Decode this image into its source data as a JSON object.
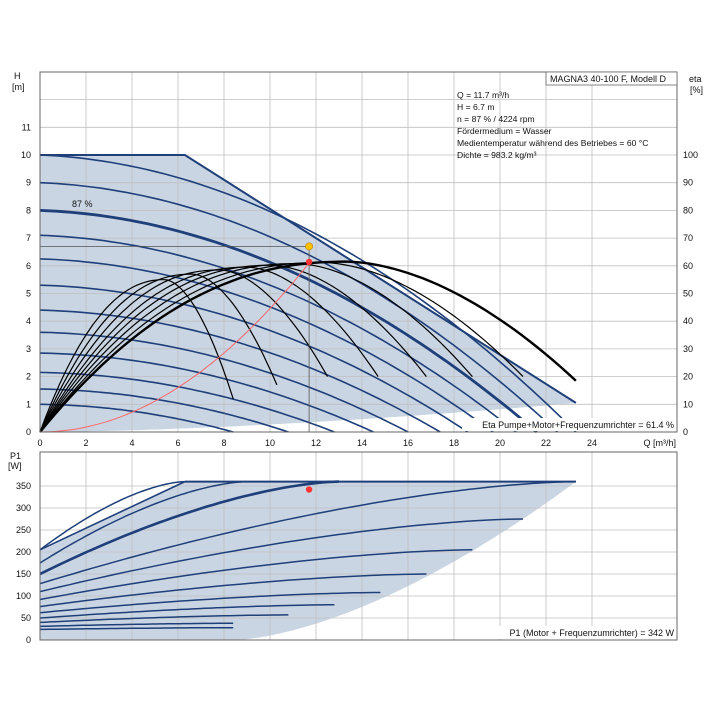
{
  "chart_data": [
    {
      "type": "line",
      "title": "MAGNA3 40-100 F, Modell D",
      "ylabel_left": [
        "H",
        "[m]"
      ],
      "ylabel_right": [
        "eta",
        "[%]"
      ],
      "xlabel": "Q [m³/h]",
      "xlim": [
        0,
        25.6
      ],
      "ylim": [
        0,
        12.5
      ],
      "ylim_right": [
        0,
        125
      ],
      "xticks": [
        0,
        2,
        4,
        6,
        8,
        10,
        12,
        14,
        16,
        18,
        20,
        22,
        24
      ],
      "yticks": [
        0,
        1,
        2,
        3,
        4,
        5,
        6,
        7,
        8,
        9,
        10,
        11
      ],
      "yticks_right": [
        0,
        10,
        20,
        30,
        40,
        50,
        60,
        70,
        80,
        90,
        100
      ],
      "grid": true,
      "info_lines": [
        "Q = 11.7 m³/h",
        "H = 6.7 m",
        "n = 87 % / 4224 rpm",
        "Fördermedium = Wasser",
        "Medientemperatur während des Betriebes = 60 °C",
        "Dichte = 983.2 kg/m³"
      ],
      "curve_label": "87 %",
      "efficiency_note": "Eta Pumpe+Motor+Frequenzumrichter = 61.4 %",
      "envelope": [
        [
          0,
          10
        ],
        [
          6.3,
          10
        ],
        [
          23.3,
          1.05
        ],
        [
          23.3,
          1.05
        ],
        [
          0,
          0
        ]
      ],
      "head_curves": [
        {
          "h0": 10.0,
          "qmax": 23.3
        },
        {
          "h0": 9.0,
          "qmax": 22.5
        },
        {
          "h0": 8.0,
          "qmax": 21.6
        },
        {
          "h0": 7.1,
          "qmax": 20.7
        },
        {
          "h0": 6.25,
          "qmax": 19.7
        },
        {
          "h0": 5.3,
          "qmax": 18.6
        },
        {
          "h0": 4.4,
          "qmax": 17.4
        },
        {
          "h0": 3.6,
          "qmax": 16.0
        },
        {
          "h0": 2.85,
          "qmax": 14.5
        },
        {
          "h0": 2.15,
          "qmax": 12.8
        },
        {
          "h0": 1.55,
          "qmax": 10.8
        },
        {
          "h0": 1.0,
          "qmax": 8.4
        }
      ],
      "eta_curves": [
        {
          "qmax": 23.3,
          "eta_peak": 61.5,
          "q_end": 23.3,
          "eta_end": 18.5
        },
        {
          "qmax": 21.5,
          "eta_peak": 61.2,
          "q_end": 21.0,
          "eta_end": 20
        },
        {
          "qmax": 19.5,
          "eta_peak": 60.8,
          "q_end": 18.8,
          "eta_end": 20
        },
        {
          "qmax": 17.6,
          "eta_peak": 60.2,
          "q_end": 16.8,
          "eta_end": 20
        },
        {
          "qmax": 15.8,
          "eta_peak": 59.5,
          "q_end": 14.7,
          "eta_end": 20
        },
        {
          "qmax": 13.7,
          "eta_peak": 58.5,
          "q_end": 12.5,
          "eta_end": 20
        },
        {
          "qmax": 11.6,
          "eta_peak": 57.0,
          "q_end": 10.3,
          "eta_end": 17
        },
        {
          "qmax": 9.5,
          "eta_peak": 55.0,
          "q_end": 8.4,
          "eta_end": 12
        }
      ],
      "system_curve_end": [
        11.7,
        6.1
      ],
      "operating_point": {
        "q": 11.7,
        "h": 6.7,
        "eta_point": 61.4
      },
      "colors": {
        "fill": "#c9d5e3",
        "curve": "#1f3f7a",
        "eta": "#000000",
        "system": "#ff6666",
        "op_point": "#ffc000",
        "eta_point": "#ff3333"
      }
    },
    {
      "type": "line",
      "ylabel": [
        "P1",
        "[W]"
      ],
      "xlim": [
        0,
        25.6
      ],
      "ylim": [
        0,
        400
      ],
      "yticks": [
        0,
        50,
        100,
        150,
        200,
        250,
        300,
        350
      ],
      "grid": true,
      "power_note": "P1 (Motor + Frequenzumrichter) = 342 W",
      "envelope": [
        [
          0,
          205
        ],
        [
          6.3,
          360
        ],
        [
          23.3,
          360
        ],
        [
          16.5,
          200
        ],
        [
          12.0,
          110
        ],
        [
          8.4,
          0
        ],
        [
          0,
          0
        ]
      ],
      "power_curves": [
        {
          "p0": 205,
          "q1": 6.3,
          "p1": 360
        },
        {
          "p0": 175,
          "q1": 9.0,
          "p1": 360
        },
        {
          "p0": 150,
          "q1": 13.0,
          "p1": 360
        },
        {
          "p0": 128,
          "q1": 23.3,
          "p1": 360
        },
        {
          "p0": 110,
          "q1": 21.0,
          "p1": 275
        },
        {
          "p0": 92,
          "q1": 18.8,
          "p1": 205
        },
        {
          "p0": 76,
          "q1": 16.8,
          "p1": 150
        },
        {
          "p0": 62,
          "q1": 14.8,
          "p1": 108
        },
        {
          "p0": 50,
          "q1": 12.8,
          "p1": 80
        },
        {
          "p0": 40,
          "q1": 10.8,
          "p1": 57
        },
        {
          "p0": 31,
          "q1": 8.4,
          "p1": 38
        },
        {
          "p0": 24,
          "q1": 8.4,
          "p1": 28
        }
      ],
      "operating_point": {
        "q": 11.7,
        "p": 342
      },
      "colors": {
        "fill": "#c9d5e3",
        "curve": "#1f3f7a",
        "op_point": "#ff3333"
      }
    }
  ]
}
